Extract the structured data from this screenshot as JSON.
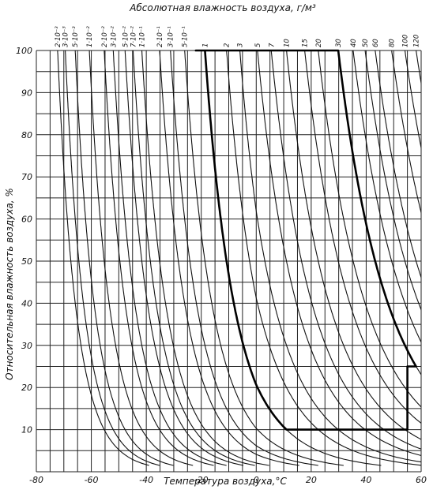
{
  "chart_data": {
    "type": "line",
    "title": "Абсолютная влажность воздуха, г/м³",
    "xlabel": "Температура воздуха,°C",
    "ylabel": "Относительная влажность воздуха, %",
    "xlim": [
      -80,
      60
    ],
    "ylim": [
      0,
      100
    ],
    "x_ticks": [
      -80,
      -60,
      -40,
      -20,
      0,
      20,
      40,
      60
    ],
    "x_tick_labels": [
      "-80",
      "-60",
      "-40",
      "-20",
      "0",
      "20",
      "40",
      "60"
    ],
    "y_ticks": [
      10,
      20,
      30,
      40,
      50,
      60,
      70,
      80,
      90,
      100
    ],
    "y_tick_labels": [
      "10",
      "20",
      "30",
      "40",
      "50",
      "60",
      "70",
      "80",
      "90",
      "100"
    ],
    "grid": true,
    "legend": "none",
    "series": [
      {
        "label": "2·10⁻³",
        "absolute_humidity": 0.002
      },
      {
        "label": "3·10⁻³",
        "absolute_humidity": 0.003
      },
      {
        "label": "5·10⁻³",
        "absolute_humidity": 0.005
      },
      {
        "label": "1·10⁻²",
        "absolute_humidity": 0.01
      },
      {
        "label": "2·10⁻²",
        "absolute_humidity": 0.02
      },
      {
        "label": "3·10⁻²",
        "absolute_humidity": 0.03
      },
      {
        "label": "5·10⁻²",
        "absolute_humidity": 0.05
      },
      {
        "label": "7·10⁻²",
        "absolute_humidity": 0.07
      },
      {
        "label": "1·10⁻¹",
        "absolute_humidity": 0.1
      },
      {
        "label": "2·10⁻¹",
        "absolute_humidity": 0.2
      },
      {
        "label": "3·10⁻¹",
        "absolute_humidity": 0.3
      },
      {
        "label": "5·10⁻¹",
        "absolute_humidity": 0.5
      },
      {
        "label": "1",
        "absolute_humidity": 1
      },
      {
        "label": "2",
        "absolute_humidity": 2
      },
      {
        "label": "3",
        "absolute_humidity": 3
      },
      {
        "label": "5",
        "absolute_humidity": 5
      },
      {
        "label": "7",
        "absolute_humidity": 7
      },
      {
        "label": "10",
        "absolute_humidity": 10
      },
      {
        "label": "15",
        "absolute_humidity": 15
      },
      {
        "label": "20",
        "absolute_humidity": 20
      },
      {
        "label": "30",
        "absolute_humidity": 30
      },
      {
        "label": "40",
        "absolute_humidity": 40
      },
      {
        "label": "50",
        "absolute_humidity": 50
      },
      {
        "label": "60",
        "absolute_humidity": 60
      },
      {
        "label": "80",
        "absolute_humidity": 80
      },
      {
        "label": "100",
        "absolute_humidity": 100
      },
      {
        "label": "120",
        "absolute_humidity": 120
      }
    ],
    "bold_region": {
      "temperature_min": -22,
      "temperature_max": 55,
      "humidity_min": 10,
      "humidity_max": 100,
      "lower_left_boundary_absolute_humidity": 1,
      "upper_right_boundary_absolute_humidity": 30,
      "right_edge_top_humidity": 25
    }
  }
}
